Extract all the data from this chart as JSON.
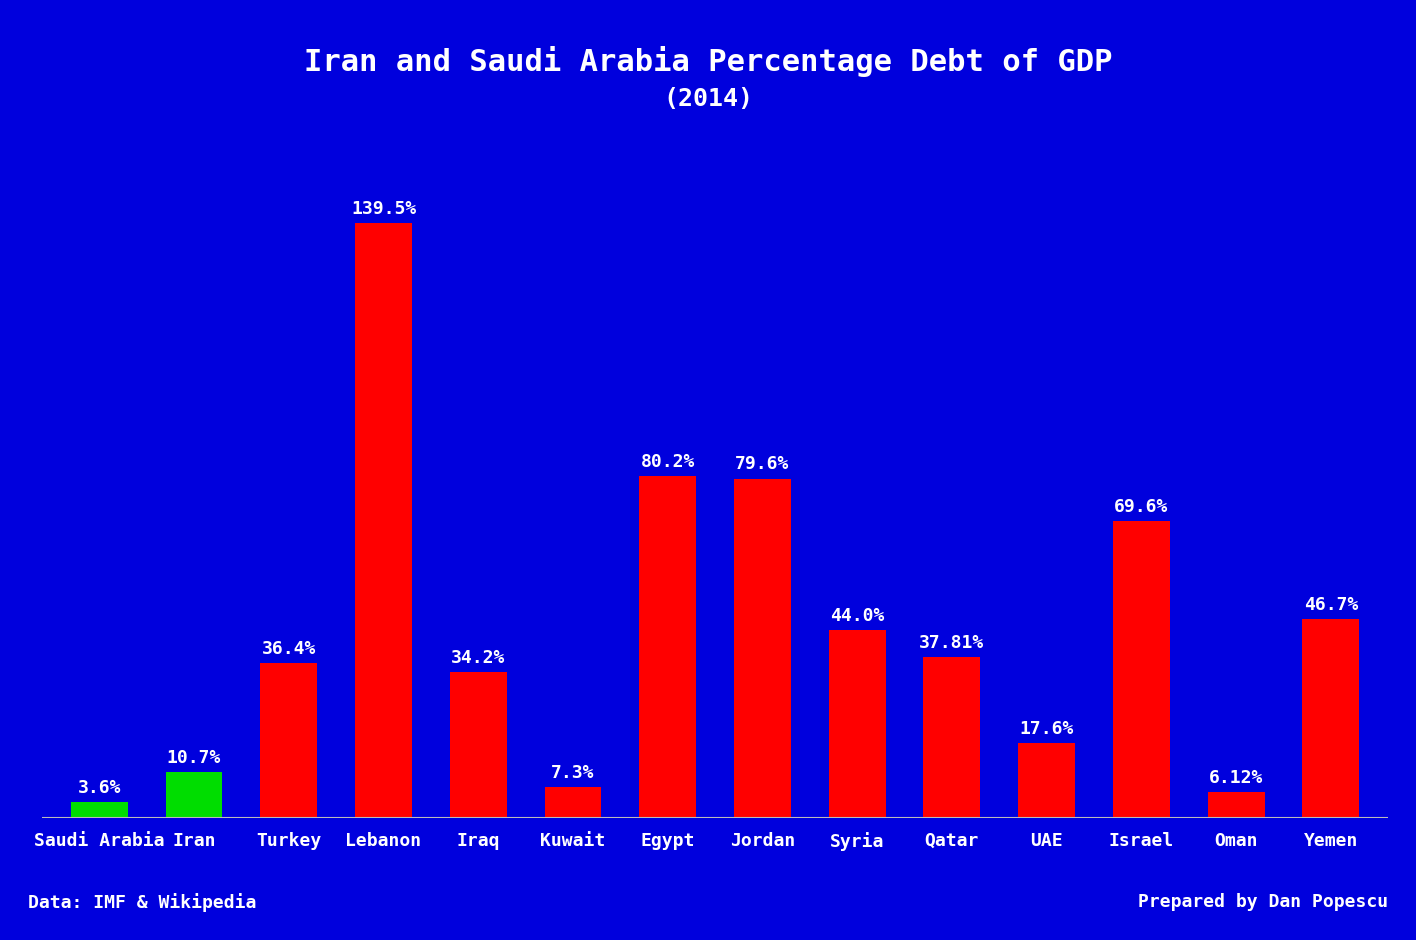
{
  "title_line1": "Iran and Saudi Arabia Percentage Debt of GDP",
  "title_line2": "(2014)",
  "categories": [
    "Saudi Arabia",
    "Iran",
    "Turkey",
    "Lebanon",
    "Iraq",
    "Kuwait",
    "Egypt",
    "Jordan",
    "Syria",
    "Qatar",
    "UAE",
    "Israel",
    "Oman",
    "Yemen"
  ],
  "values": [
    3.6,
    10.7,
    36.4,
    139.5,
    34.2,
    7.3,
    80.2,
    79.6,
    44.0,
    37.81,
    17.6,
    69.6,
    6.12,
    46.7
  ],
  "labels": [
    "3.6%",
    "10.7%",
    "36.4%",
    "139.5%",
    "34.2%",
    "7.3%",
    "80.2%",
    "79.6%",
    "44.0%",
    "37.81%",
    "17.6%",
    "69.6%",
    "6.12%",
    "46.7%"
  ],
  "bar_colors": [
    "#00dd00",
    "#00dd00",
    "#ff0000",
    "#ff0000",
    "#ff0000",
    "#ff0000",
    "#ff0000",
    "#ff0000",
    "#ff0000",
    "#ff0000",
    "#ff0000",
    "#ff0000",
    "#ff0000",
    "#ff0000"
  ],
  "background_color": "#0000dd",
  "text_color": "#ffffff",
  "footer_left": "Data: IMF & Wikipedia",
  "footer_right": "Prepared by Dan Popescu",
  "ylim": [
    0,
    150
  ],
  "title_fontsize": 22,
  "subtitle_fontsize": 18,
  "label_fontsize": 13,
  "tick_fontsize": 13,
  "footer_fontsize": 13
}
